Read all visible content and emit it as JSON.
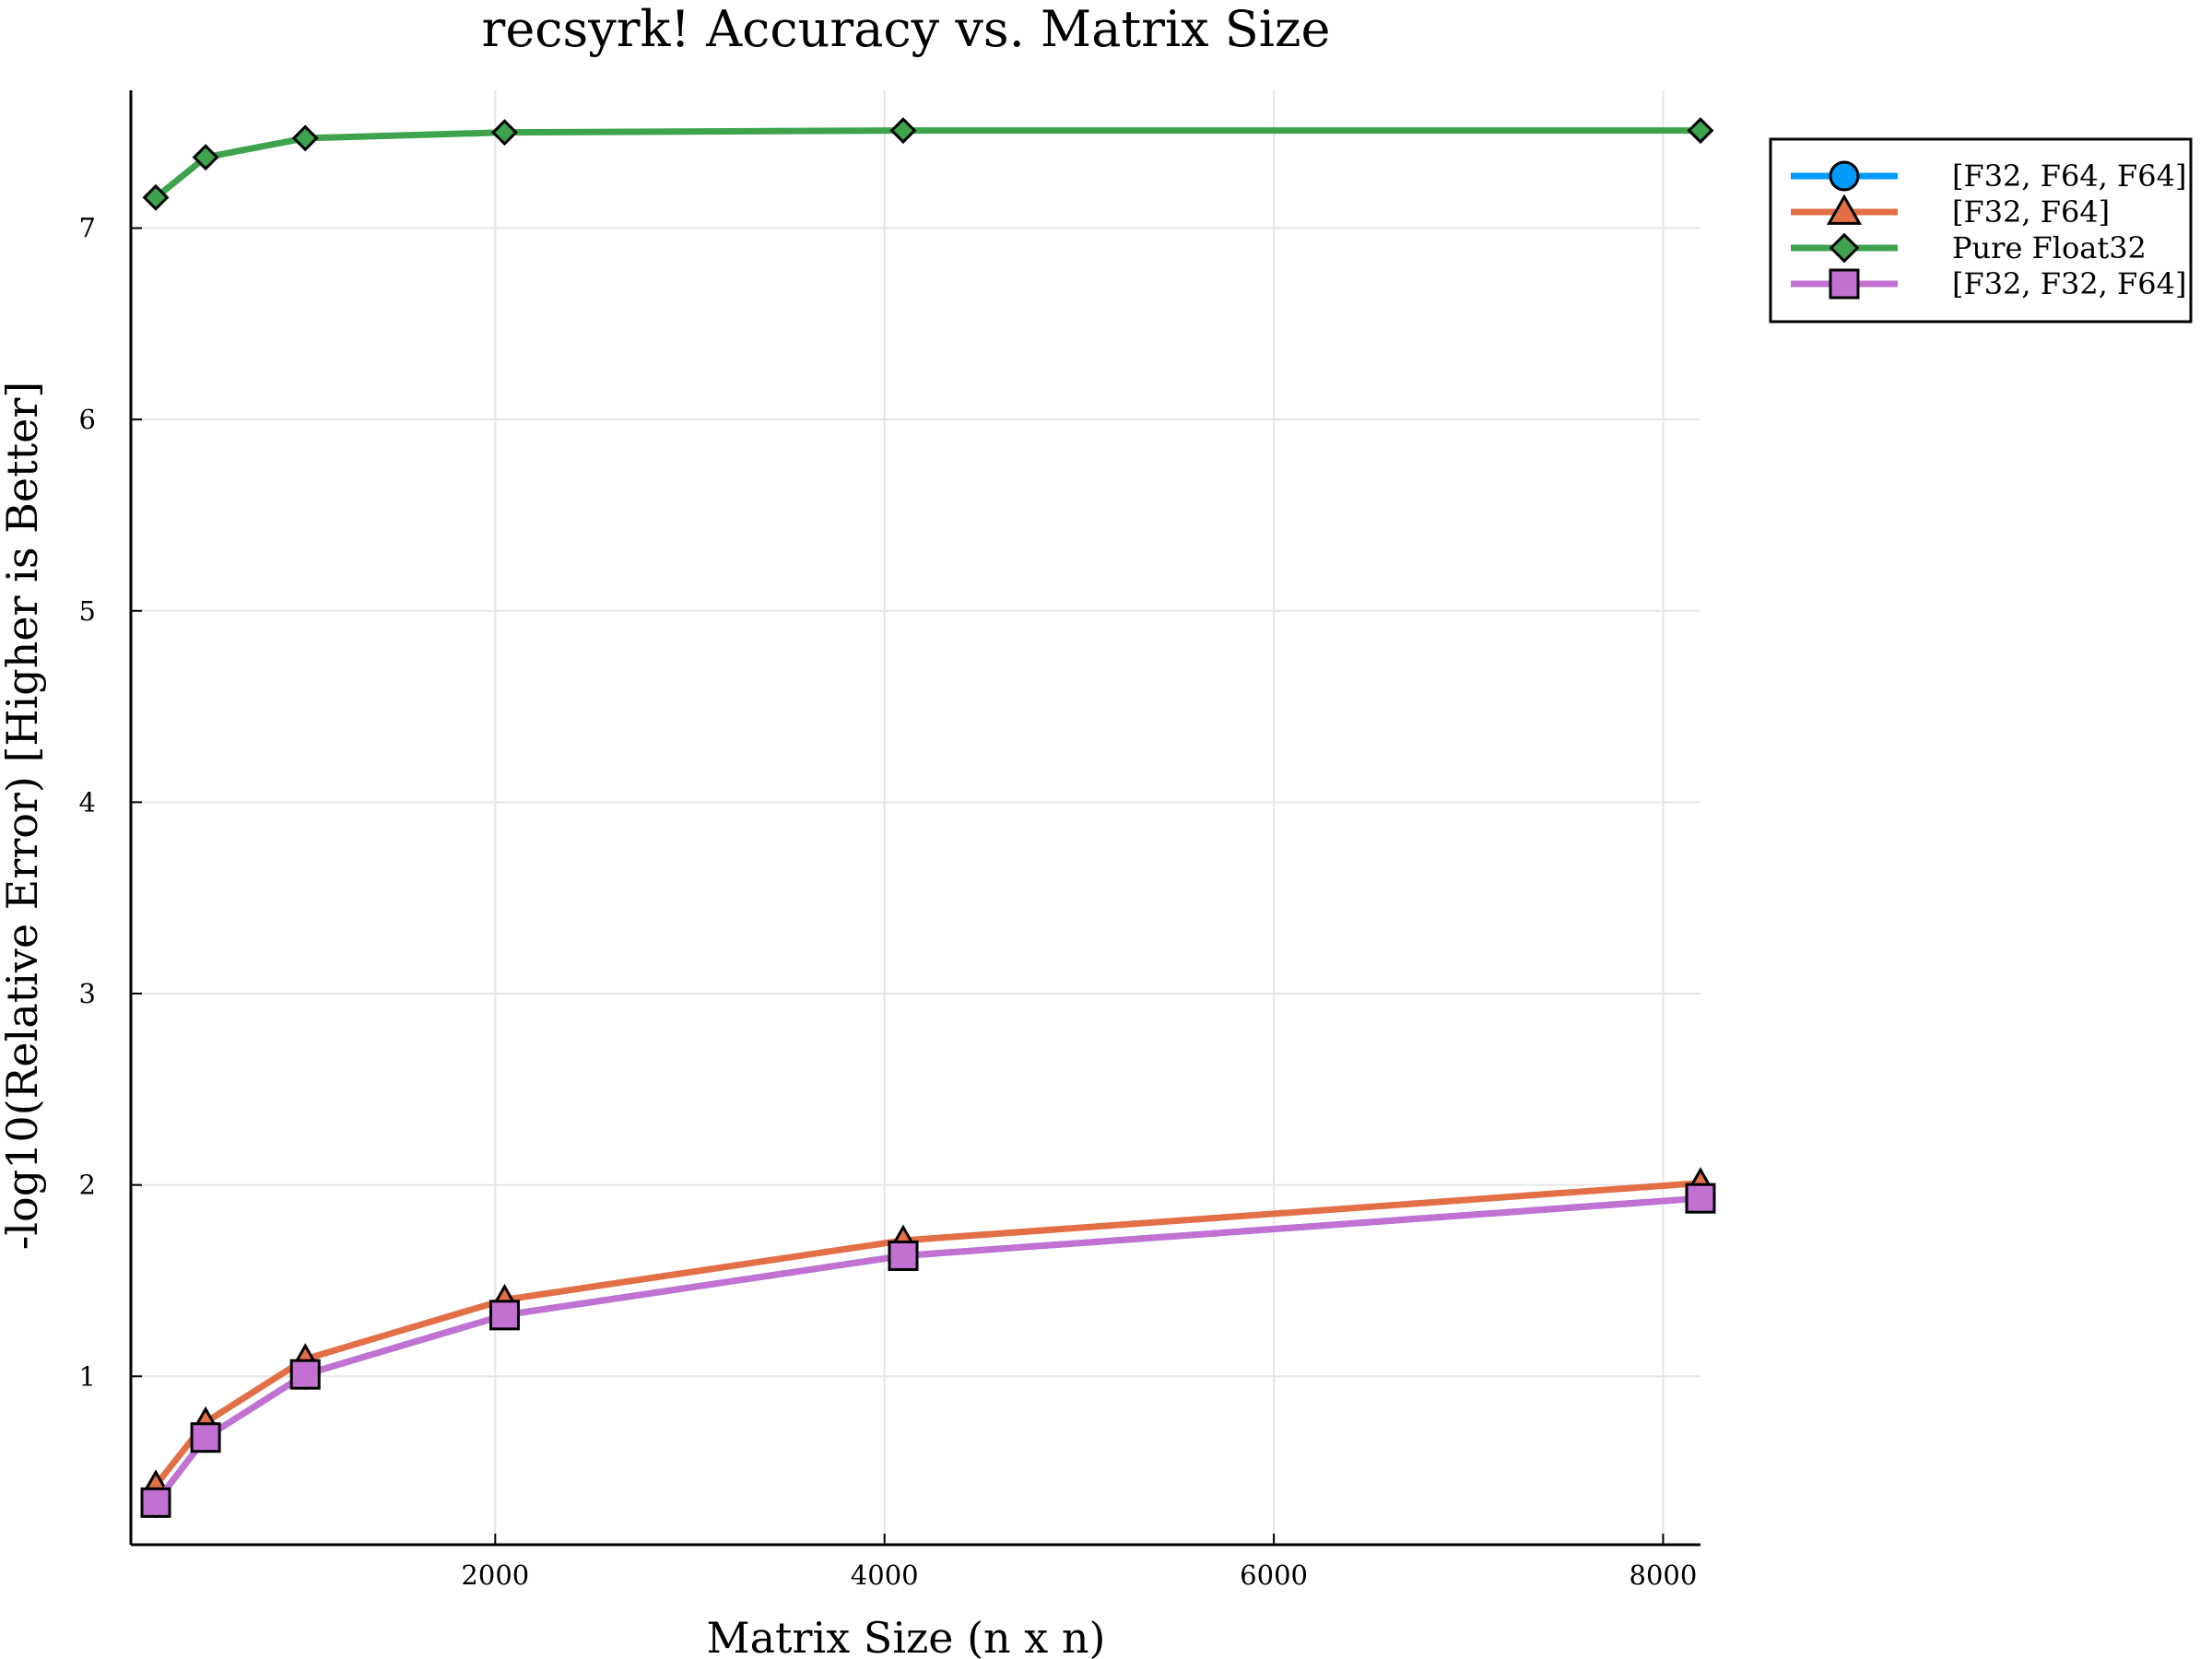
{
  "chart_data": {
    "type": "line",
    "title": "recsyrk! Accuracy vs. Matrix Size",
    "xlabel": "Matrix Size (n x n)",
    "ylabel": "-log10(Relative Error) [Higher is Better]",
    "xlim": [
      128,
      8192
    ],
    "ylim": [
      0.12,
      7.72
    ],
    "xticks": [
      2000,
      4000,
      6000,
      8000
    ],
    "yticks": [
      1,
      2,
      3,
      4,
      5,
      6,
      7
    ],
    "grid": true,
    "legend_position": "top-right",
    "series": [
      {
        "name": "[F32, F64, F64]",
        "color": "#009af9",
        "marker": "circle",
        "x": [
          256,
          512,
          1024,
          2048,
          4096,
          8192
        ],
        "y": [
          0.34,
          0.68,
          1.01,
          1.32,
          1.63,
          1.93
        ]
      },
      {
        "name": "[F32, F64]",
        "color": "#e26f46",
        "marker": "triangle",
        "x": [
          256,
          512,
          1024,
          2048,
          4096,
          8192
        ],
        "y": [
          0.43,
          0.76,
          1.09,
          1.4,
          1.71,
          2.01
        ]
      },
      {
        "name": "Pure Float32",
        "color": "#3da44d",
        "marker": "diamond",
        "x": [
          256,
          512,
          1024,
          2048,
          4096,
          8192
        ],
        "y": [
          7.16,
          7.37,
          7.47,
          7.5,
          7.51,
          7.51
        ]
      },
      {
        "name": "[F32, F32, F64]",
        "color": "#c271d2",
        "marker": "square",
        "x": [
          256,
          512,
          1024,
          2048,
          4096,
          8192
        ],
        "y": [
          0.34,
          0.68,
          1.01,
          1.32,
          1.63,
          1.93
        ]
      }
    ]
  }
}
